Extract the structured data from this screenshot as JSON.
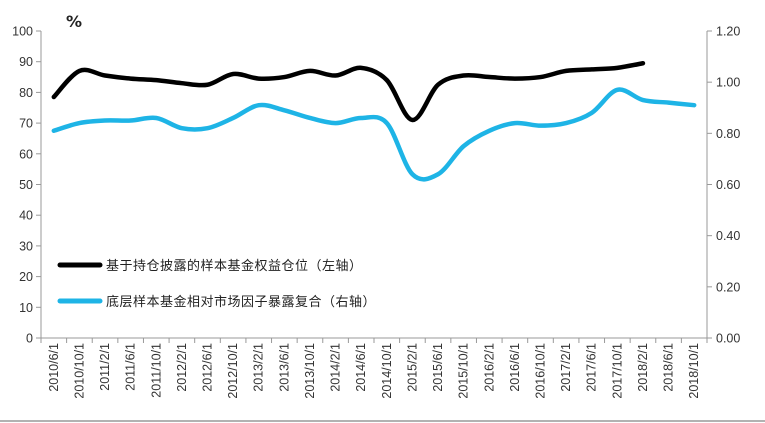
{
  "chart_data": {
    "type": "line",
    "unit_label": "%",
    "left_axis": {
      "ylim": [
        0,
        100
      ],
      "ticks": [
        "0",
        "10",
        "20",
        "30",
        "40",
        "50",
        "60",
        "70",
        "80",
        "90",
        "100"
      ]
    },
    "right_axis": {
      "ylim": [
        0,
        1.2
      ],
      "ticks": [
        "0.00",
        "0.20",
        "0.40",
        "0.60",
        "0.80",
        "1.00",
        "1.20"
      ]
    },
    "categories": [
      "2010/6/1",
      "2010/10/1",
      "2011/2/1",
      "2011/6/1",
      "2011/10/1",
      "2012/2/1",
      "2012/6/1",
      "2012/10/1",
      "2013/2/1",
      "2013/6/1",
      "2013/10/1",
      "2014/2/1",
      "2014/6/1",
      "2014/10/1",
      "2015/2/1",
      "2015/6/1",
      "2015/10/1",
      "2016/2/1",
      "2016/6/1",
      "2016/10/1",
      "2017/2/1",
      "2017/6/1",
      "2017/10/1",
      "2018/2/1",
      "2018/6/1",
      "2018/10/1"
    ],
    "series": [
      {
        "name": "基于持仓披露的样本基金权益仓位（左轴）",
        "axis": "left",
        "color": "#000000",
        "values": [
          78.5,
          87,
          85.5,
          84.5,
          84,
          83,
          82.5,
          86,
          84.5,
          85,
          87,
          85.5,
          88,
          84,
          71,
          82.5,
          85.5,
          85,
          84.5,
          85,
          87,
          87.5,
          88,
          89.5,
          null,
          null
        ]
      },
      {
        "name": "底层样本基金相对市场因子暴露复合（右轴）",
        "axis": "right",
        "color": "#1EB4E6",
        "values": [
          0.81,
          0.84,
          0.85,
          0.85,
          0.86,
          0.82,
          0.82,
          0.86,
          0.91,
          0.89,
          0.86,
          0.84,
          0.86,
          0.84,
          0.64,
          0.64,
          0.75,
          0.81,
          0.84,
          0.83,
          0.84,
          0.88,
          0.97,
          0.93,
          0.92,
          0.91
        ]
      }
    ],
    "legend_position": "lower-left",
    "grid": false
  }
}
